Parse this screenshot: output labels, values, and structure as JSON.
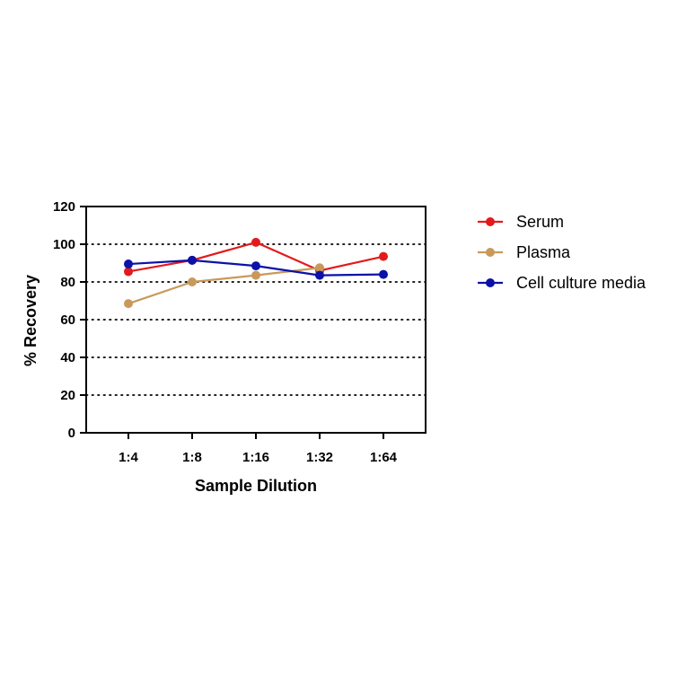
{
  "chart_data": {
    "type": "line",
    "title": "",
    "xlabel": "Sample Dilution",
    "ylabel": "% Recovery",
    "categories": [
      "1:4",
      "1:8",
      "1:16",
      "1:32",
      "1:64"
    ],
    "ylim": [
      0,
      120
    ],
    "yticks": [
      0,
      20,
      40,
      60,
      80,
      100,
      120
    ],
    "yticks_labels": [
      "0",
      "20",
      "40",
      "60",
      "80",
      "100",
      "120"
    ],
    "grid": "horizontal dotted at 20, 40, 60, 80, 100",
    "legend_position": "right",
    "series": [
      {
        "name": "Serum",
        "color": "#e31a1c",
        "values": [
          85.5,
          91.5,
          101,
          86,
          93.5
        ]
      },
      {
        "name": "Plasma",
        "color": "#c9995a",
        "values": [
          68.5,
          80,
          83.5,
          87.5,
          null
        ]
      },
      {
        "name": "Cell culture media",
        "color": "#0a12a8",
        "values": [
          89.5,
          91.5,
          88.5,
          83.5,
          84
        ]
      }
    ]
  }
}
